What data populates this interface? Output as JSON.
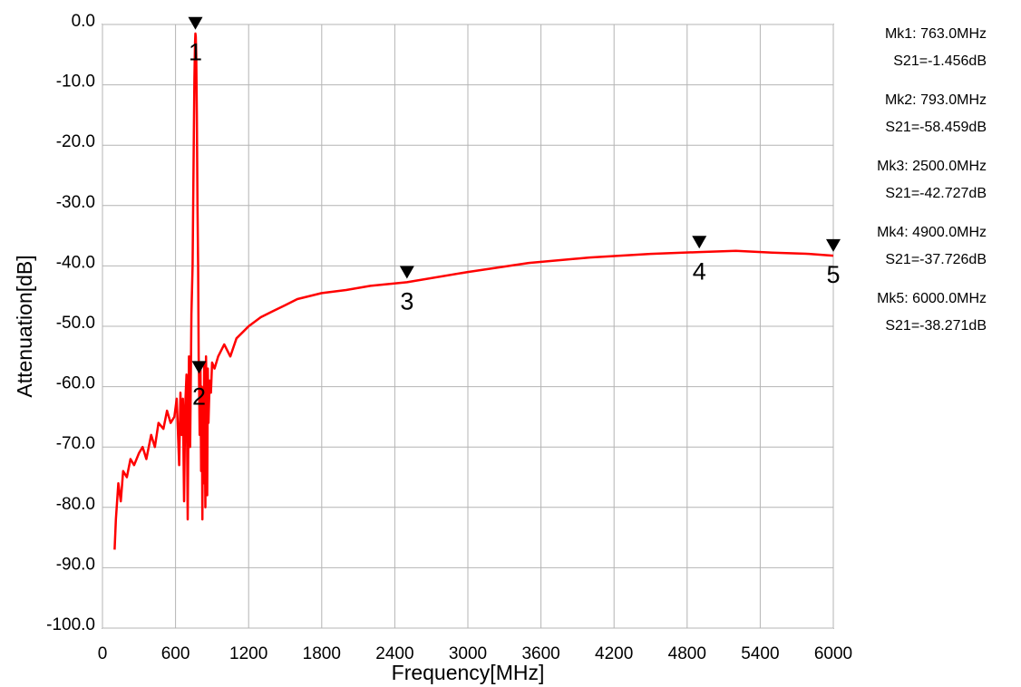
{
  "chart_data": {
    "type": "line",
    "xlabel": "Frequency[MHz]",
    "ylabel": "Attenuation[dB]",
    "xlim": [
      0,
      6000
    ],
    "ylim": [
      -100,
      0
    ],
    "x_ticks": [
      0,
      600,
      1200,
      1800,
      2400,
      3000,
      3600,
      4200,
      4800,
      5400,
      6000
    ],
    "x_tick_labels": [
      "0",
      "600",
      "1200",
      "1800",
      "2400",
      "3000",
      "3600",
      "4200",
      "4800",
      "5400",
      "6000"
    ],
    "y_ticks": [
      0,
      -10,
      -20,
      -30,
      -40,
      -50,
      -60,
      -70,
      -80,
      -90,
      -100
    ],
    "y_tick_labels": [
      "0.0",
      "-10.0",
      "-20.0",
      "-30.0",
      "-40.0",
      "-50.0",
      "-60.0",
      "-70.0",
      "-80.0",
      "-90.0",
      "-100.0"
    ],
    "grid": true,
    "series_color": "#ff0000",
    "series": [
      {
        "x": [
          100,
          110,
          130,
          150,
          170,
          200,
          230,
          260,
          300,
          330,
          360,
          400,
          430,
          460,
          500,
          530,
          560,
          590,
          610,
          630,
          640,
          650,
          660,
          670,
          680,
          690,
          700,
          710,
          720,
          730,
          740,
          750,
          755,
          760,
          763,
          766,
          770,
          775,
          780,
          785,
          790,
          793,
          798,
          805,
          810,
          815,
          820,
          825,
          830,
          835,
          840,
          845,
          850,
          855,
          860,
          865,
          870,
          880,
          890,
          900,
          920,
          950,
          1000,
          1050,
          1100,
          1150,
          1200,
          1300,
          1400,
          1500,
          1600,
          1800,
          2000,
          2200,
          2500,
          3000,
          3500,
          4000,
          4500,
          4900,
          5200,
          5500,
          5800,
          6000
        ],
        "y": [
          -87,
          -82,
          -76,
          -79,
          -74,
          -75,
          -72,
          -73,
          -71,
          -70,
          -72,
          -68,
          -70,
          -66,
          -67,
          -64,
          -66,
          -65,
          -62,
          -73,
          -61,
          -68,
          -62,
          -79,
          -63,
          -58,
          -82,
          -55,
          -70,
          -48,
          -40,
          -18,
          -9,
          -3,
          -1.5,
          -2,
          -5,
          -15,
          -30,
          -40,
          -55,
          -58.5,
          -68,
          -57,
          -74,
          -60,
          -82,
          -61,
          -76,
          -56,
          -66,
          -80,
          -55,
          -64,
          -78,
          -57,
          -66,
          -59,
          -61,
          -56,
          -57,
          -55,
          -53,
          -55,
          -52,
          -51,
          -50,
          -48.5,
          -47.5,
          -46.5,
          -45.5,
          -44.5,
          -44,
          -43.3,
          -42.7,
          -41,
          -39.5,
          -38.6,
          -38,
          -37.7,
          -37.5,
          -37.8,
          -38,
          -38.3
        ]
      }
    ],
    "markers": [
      {
        "label": "1",
        "x": 763,
        "y": -1.456
      },
      {
        "label": "2",
        "x": 793,
        "y": -58.459
      },
      {
        "label": "3",
        "x": 2500,
        "y": -42.727
      },
      {
        "label": "4",
        "x": 4900,
        "y": -37.726
      },
      {
        "label": "5",
        "x": 6000,
        "y": -38.271
      }
    ],
    "marker_readouts": [
      {
        "line1": "Mk1:  763.0MHz",
        "line2": "S21=-1.456dB"
      },
      {
        "line1": "Mk2:  793.0MHz",
        "line2": "S21=-58.459dB"
      },
      {
        "line1": "Mk3: 2500.0MHz",
        "line2": "S21=-42.727dB"
      },
      {
        "line1": "Mk4: 4900.0MHz",
        "line2": "S21=-37.726dB"
      },
      {
        "line1": "Mk5: 6000.0MHz",
        "line2": "S21=-38.271dB"
      }
    ]
  }
}
